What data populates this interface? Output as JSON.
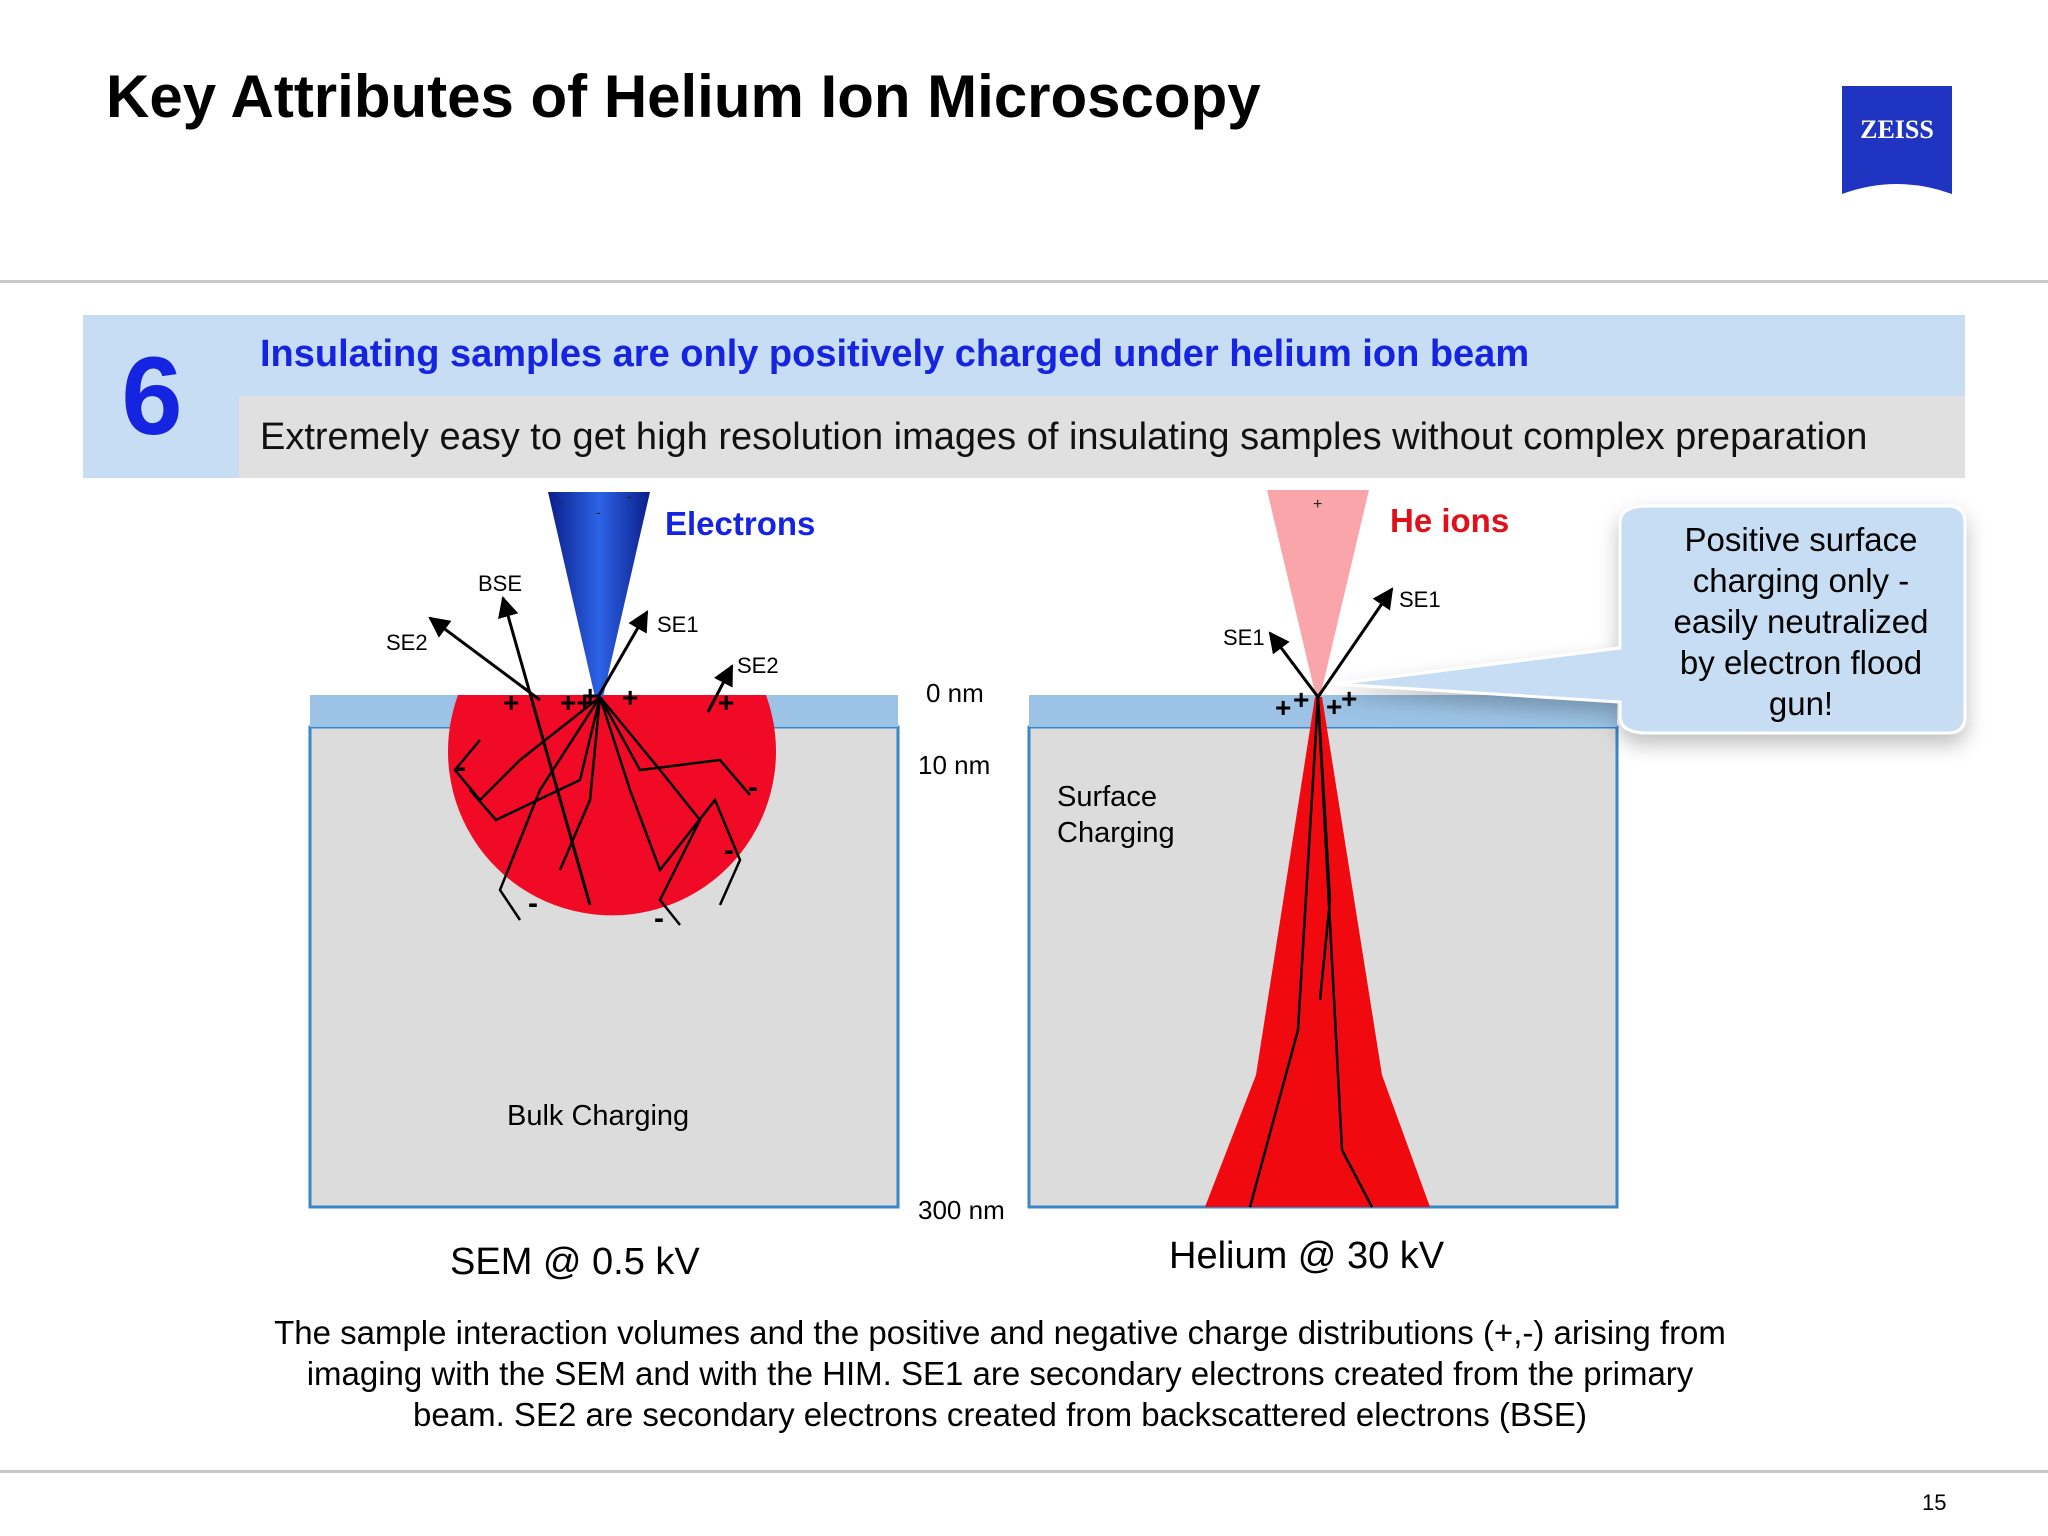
{
  "slide": {
    "title": "Key Attributes of Helium Ion Microscopy",
    "logo_text": "ZEISS",
    "page_number": "15",
    "colors": {
      "accent_blue": "#1524e0",
      "band_blue": "#c6ddf3",
      "band_gray": "#e0e0e0",
      "logo_blue": "#1f35c2"
    }
  },
  "band": {
    "number": "6",
    "headline": "Insulating samples are only positively charged under helium ion beam",
    "subline": "Extremely easy to get high resolution images of insulating samples without complex preparation"
  },
  "sem_panel": {
    "beam_label": "Electrons",
    "beam_charges": [
      "-",
      "-",
      "-"
    ],
    "labels": {
      "bse": "BSE",
      "se2_left": "SE2",
      "se1": "SE1",
      "se2_right": "SE2"
    },
    "surface_charges": [
      "+",
      "++",
      "+",
      "+",
      "+"
    ],
    "volume_charges": [
      "-",
      "-",
      "-",
      "-",
      "-"
    ],
    "region_label": "Bulk Charging",
    "title": "SEM @ 0.5 kV"
  },
  "depth_labels": {
    "top": "0 nm",
    "mid": "10 nm",
    "bottom": "300 nm"
  },
  "him_panel": {
    "beam_label": "He ions",
    "beam_charge": "+",
    "labels": {
      "se1_left": "SE1",
      "se1_right": "SE1"
    },
    "surface_charges": [
      "+",
      "+",
      "+",
      "+"
    ],
    "region_label_line1": "Surface",
    "region_label_line2": "Charging",
    "title": "Helium @ 30 kV"
  },
  "callout": {
    "lines": [
      "Positive surface",
      "charging only -",
      "easily neutralized",
      "by electron flood",
      "gun!"
    ]
  },
  "caption": "The sample interaction volumes and the positive and negative charge distributions (+,-) arising from imaging with the SEM and with the HIM. SE1 are secondary electrons created from the primary beam. SE2 are secondary electrons created from backscattered electrons (BSE)"
}
